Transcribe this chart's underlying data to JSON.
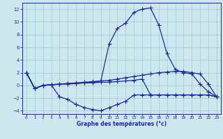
{
  "xlabel": "Graphe des températures (°c)",
  "bg_color": "#cce8ee",
  "line_color": "#1a2a9b",
  "grid_color": "#9fc8d4",
  "xlim": [
    -0.5,
    23.5
  ],
  "ylim": [
    -4.5,
    13.0
  ],
  "xticks": [
    0,
    1,
    2,
    3,
    4,
    5,
    6,
    7,
    8,
    9,
    10,
    11,
    12,
    13,
    14,
    15,
    16,
    17,
    18,
    19,
    20,
    21,
    22,
    23
  ],
  "yticks": [
    -4,
    -2,
    0,
    2,
    4,
    6,
    8,
    10,
    12
  ],
  "series": [
    {
      "x": [
        0,
        1,
        2,
        3,
        4,
        5,
        6,
        7,
        8,
        9,
        10,
        11,
        12,
        13,
        14,
        15,
        16,
        17,
        18,
        19,
        20,
        21,
        22,
        23
      ],
      "y": [
        2.0,
        -0.5,
        0.0,
        0.1,
        0.2,
        0.2,
        0.3,
        0.4,
        0.5,
        0.7,
        6.5,
        9.0,
        9.8,
        11.5,
        12.0,
        12.2,
        9.5,
        5.0,
        2.5,
        2.0,
        1.8,
        0.2,
        -1.0,
        -1.8
      ]
    },
    {
      "x": [
        0,
        1,
        2,
        3,
        4,
        5,
        6,
        7,
        8,
        9,
        10,
        11,
        12,
        13,
        14,
        15,
        16,
        17,
        18,
        19,
        20,
        21,
        22,
        23
      ],
      "y": [
        2.0,
        -0.5,
        0.0,
        0.1,
        0.2,
        0.3,
        0.4,
        0.5,
        0.6,
        0.7,
        0.8,
        1.0,
        1.2,
        1.4,
        1.6,
        1.8,
        2.0,
        2.1,
        2.2,
        2.2,
        2.0,
        1.8,
        0.2,
        -1.8
      ]
    },
    {
      "x": [
        0,
        1,
        2,
        3,
        4,
        5,
        6,
        7,
        8,
        9,
        10,
        11,
        12,
        13,
        14,
        15,
        16,
        17,
        18,
        19,
        20,
        21,
        22,
        23
      ],
      "y": [
        2.0,
        -0.5,
        0.0,
        0.1,
        0.2,
        0.3,
        0.3,
        0.4,
        0.4,
        0.5,
        0.5,
        0.6,
        0.7,
        0.8,
        1.0,
        -1.5,
        -1.5,
        -1.5,
        -1.5,
        -1.5,
        -1.5,
        -1.5,
        -1.5,
        -1.8
      ]
    },
    {
      "x": [
        0,
        1,
        2,
        3,
        4,
        5,
        6,
        7,
        8,
        9,
        10,
        11,
        12,
        13,
        14,
        15,
        16,
        17,
        18,
        19,
        20,
        21,
        22,
        23
      ],
      "y": [
        2.0,
        -0.5,
        0.0,
        0.1,
        -1.8,
        -2.2,
        -3.0,
        -3.5,
        -3.8,
        -4.0,
        -3.5,
        -3.0,
        -2.5,
        -1.5,
        -1.5,
        -1.5,
        -1.5,
        -1.5,
        -1.5,
        -1.5,
        -1.5,
        -1.5,
        -1.5,
        -1.8
      ]
    }
  ]
}
